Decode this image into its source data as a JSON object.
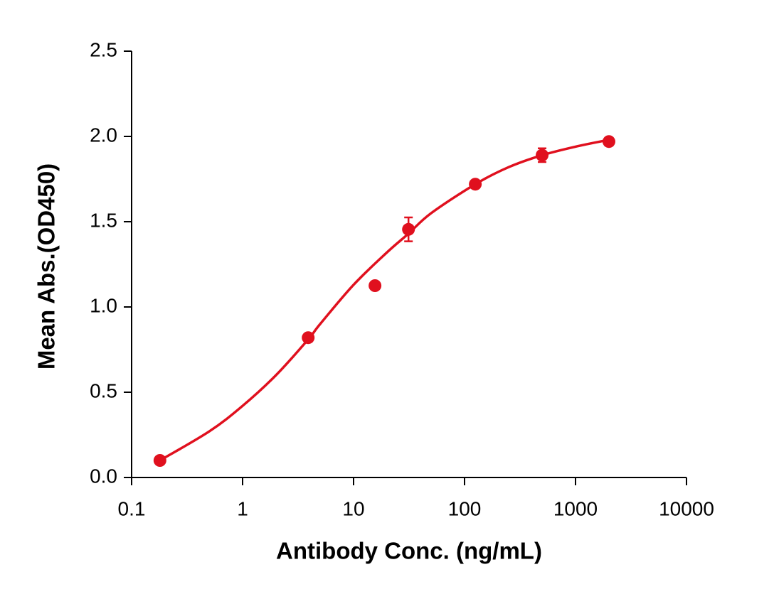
{
  "chart_data": {
    "type": "scatter",
    "x_label": "Antibody Conc. (ng/mL)",
    "y_label": "Mean Abs.(OD450)",
    "x_scale": "log",
    "xlim": [
      0.1,
      10000
    ],
    "xticks": [
      0.1,
      1,
      10,
      100,
      1000,
      10000
    ],
    "ylim": [
      0,
      2.5
    ],
    "yticks": [
      {
        "value": 0,
        "label": "0.0"
      },
      0.5,
      {
        "value": 1,
        "label": "1.0"
      },
      1.5,
      {
        "value": 2,
        "label": "2.0"
      },
      2.5
    ],
    "series": [
      {
        "color": "#e0101e",
        "x": [
          0.18,
          3.9,
          15.6,
          31.25,
          125,
          500,
          2000
        ],
        "values": [
          0.1,
          0.82,
          1.125,
          1.455,
          1.72,
          1.89,
          1.97
        ],
        "errors": [
          null,
          null,
          null,
          0.07,
          null,
          0.04,
          null
        ]
      },
      {
        "color": "#e0101e",
        "kind": "fit",
        "x": [
          0.18,
          0.5,
          1,
          2,
          3.9,
          5,
          10,
          20,
          31.25,
          50,
          125,
          250,
          500,
          1000,
          2000
        ],
        "values": [
          0.1,
          0.27,
          0.42,
          0.6,
          0.81,
          0.9,
          1.13,
          1.32,
          1.43,
          1.55,
          1.72,
          1.82,
          1.89,
          1.94,
          1.98
        ]
      }
    ]
  }
}
